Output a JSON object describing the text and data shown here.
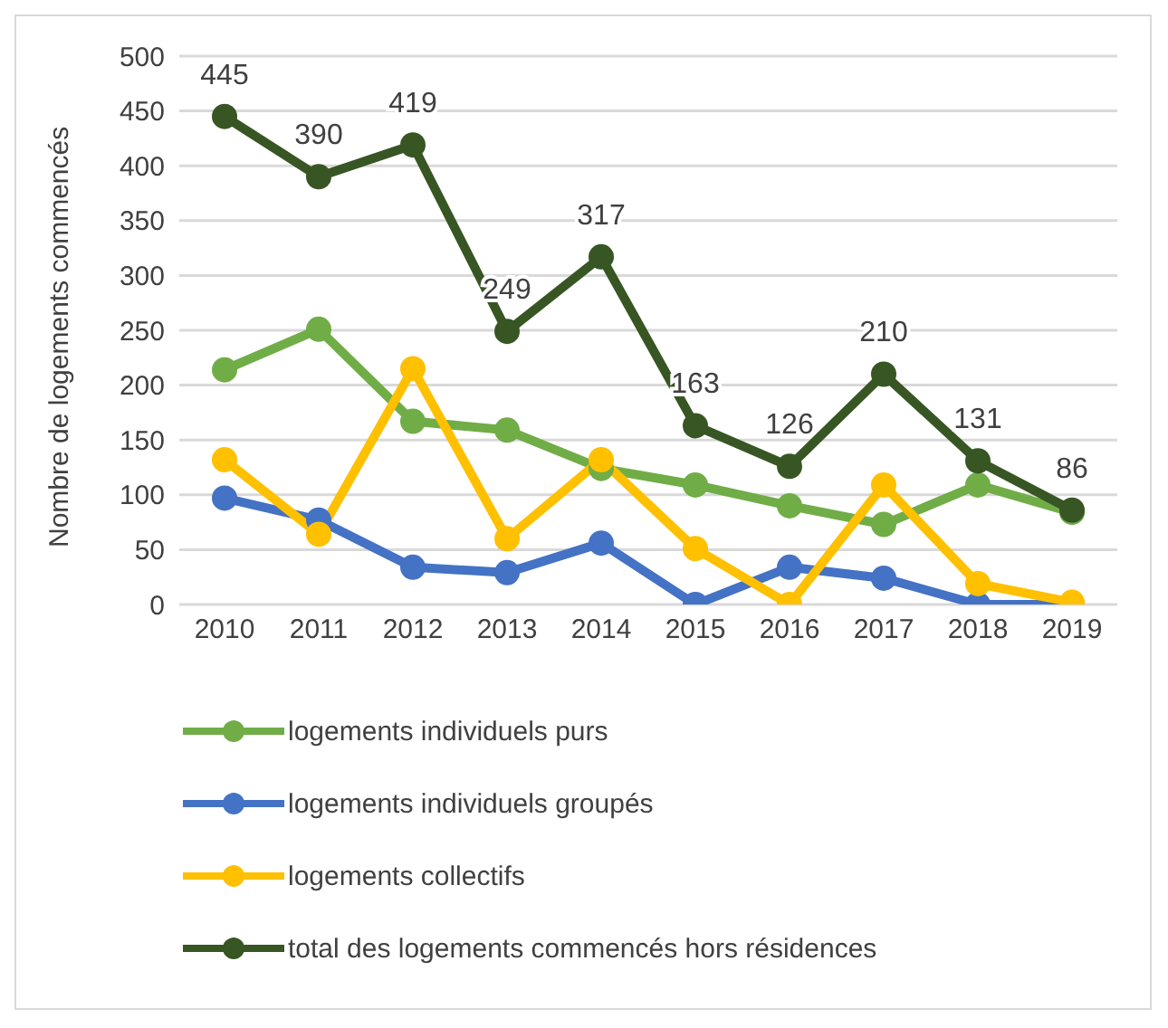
{
  "chart_data": {
    "type": "line",
    "ylabel": "Nombre de logements commencés",
    "categories": [
      "2010",
      "2011",
      "2012",
      "2013",
      "2014",
      "2015",
      "2016",
      "2017",
      "2018",
      "2019"
    ],
    "ylim": [
      0,
      500
    ],
    "yticks": [
      0,
      50,
      100,
      150,
      200,
      250,
      300,
      350,
      400,
      450,
      500
    ],
    "grid": "y",
    "legend": "bottom",
    "marker": "circle",
    "line_style": "solid",
    "series": [
      {
        "name": "logements individuels purs",
        "color": "#70ad47",
        "values": [
          214,
          251,
          167,
          159,
          124,
          109,
          90,
          73,
          109,
          84
        ]
      },
      {
        "name": "logements individuels groupés",
        "color": "#4472c4",
        "values": [
          97,
          77,
          34,
          29,
          56,
          0,
          34,
          24,
          0,
          0
        ]
      },
      {
        "name": "logements collectifs",
        "color": "#ffc000",
        "values": [
          132,
          64,
          215,
          60,
          132,
          51,
          0,
          109,
          19,
          2
        ]
      },
      {
        "name": "total des logements commencés hors résidences",
        "color": "#375623",
        "values": [
          445,
          390,
          419,
          249,
          317,
          163,
          126,
          210,
          131,
          86
        ],
        "value_labels": [
          "445",
          "390",
          "419",
          "249",
          "317",
          "163",
          "126",
          "210",
          "131",
          "86"
        ]
      }
    ]
  }
}
